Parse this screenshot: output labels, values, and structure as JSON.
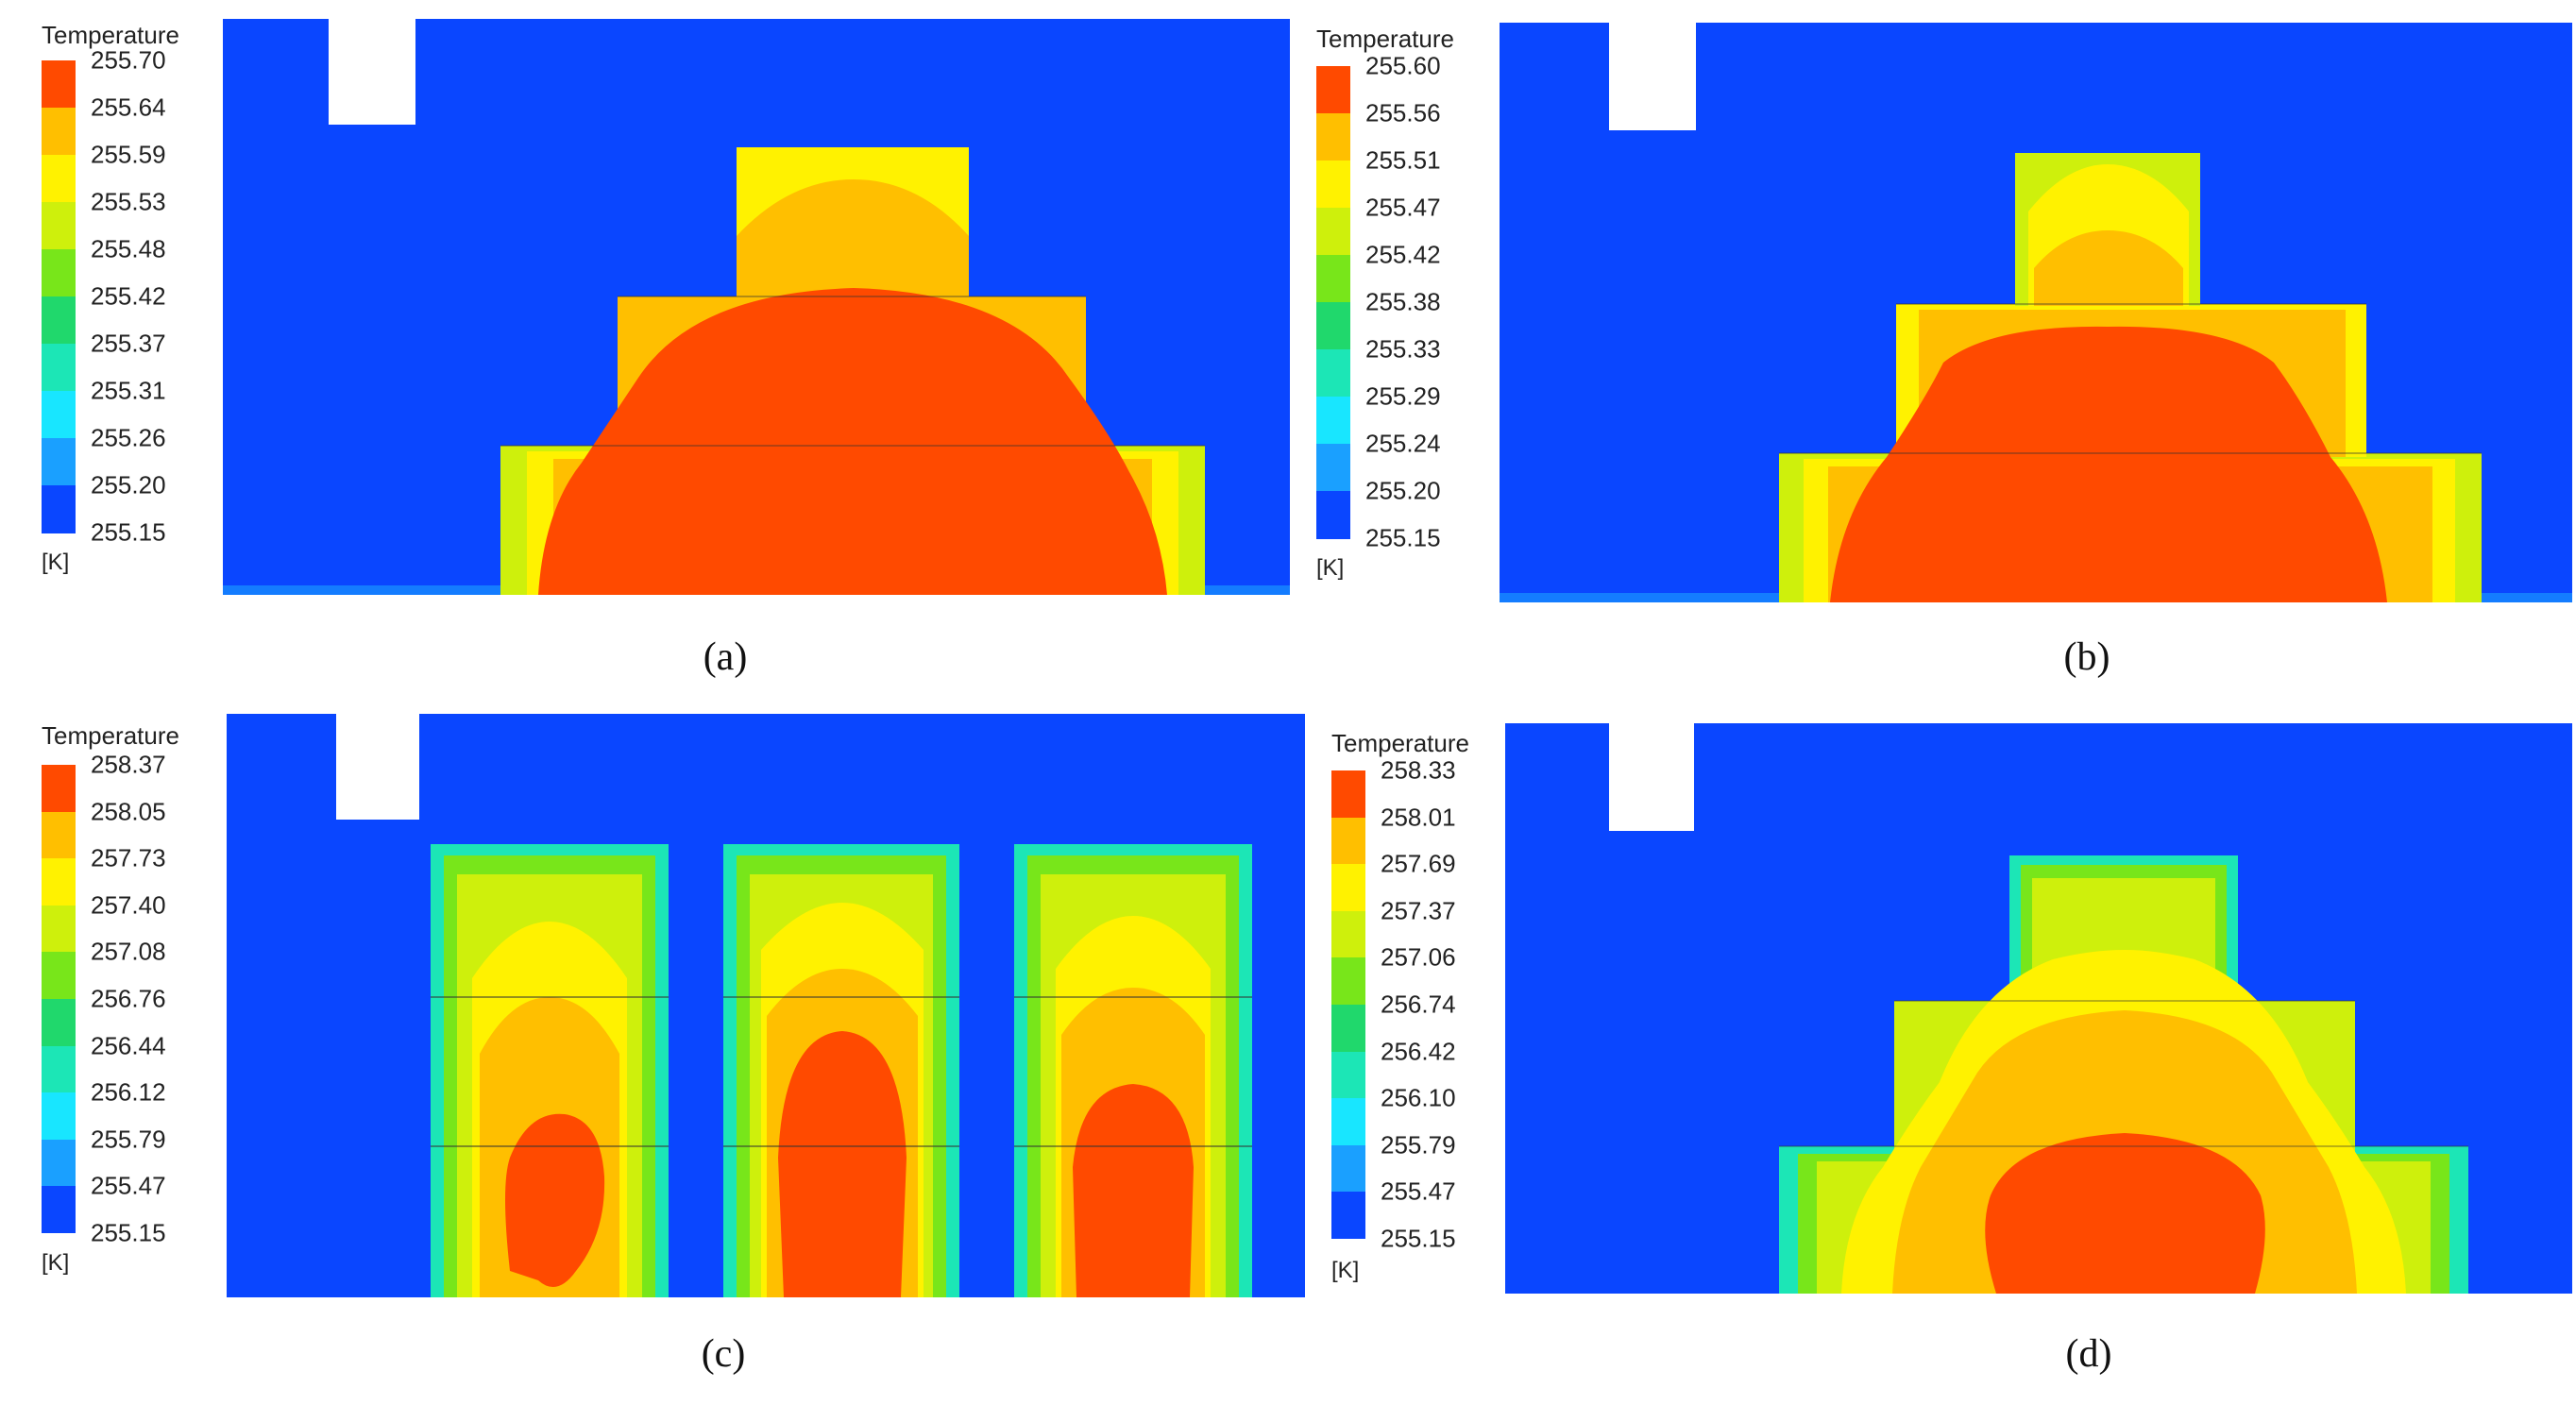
{
  "colors": {
    "background_field": "#0a46ff",
    "scale": [
      "#0a46ff",
      "#1aa0ff",
      "#18e6ff",
      "#1ce6b6",
      "#20d86c",
      "#78e61a",
      "#cef00c",
      "#fff200",
      "#ffbf00",
      "#ff4a00"
    ]
  },
  "panels": [
    {
      "id": "a",
      "caption": "(a)",
      "legend": {
        "title": "Temperature",
        "unit": "[K]",
        "ticks": [
          "255.70",
          "255.64",
          "255.59",
          "255.53",
          "255.48",
          "255.42",
          "255.37",
          "255.31",
          "255.26",
          "255.20",
          "255.15"
        ]
      }
    },
    {
      "id": "b",
      "caption": "(b)",
      "legend": {
        "title": "Temperature",
        "unit": "[K]",
        "ticks": [
          "255.60",
          "255.56",
          "255.51",
          "255.47",
          "255.42",
          "255.38",
          "255.33",
          "255.29",
          "255.24",
          "255.20",
          "255.15"
        ]
      }
    },
    {
      "id": "c",
      "caption": "(c)",
      "legend": {
        "title": "Temperature",
        "unit": "[K]",
        "ticks": [
          "258.37",
          "258.05",
          "257.73",
          "257.40",
          "257.08",
          "256.76",
          "256.44",
          "256.12",
          "255.79",
          "255.47",
          "255.15"
        ]
      }
    },
    {
      "id": "d",
      "caption": "(d)",
      "legend": {
        "title": "Temperature",
        "unit": "[K]",
        "ticks": [
          "258.33",
          "258.01",
          "257.69",
          "257.37",
          "257.06",
          "256.74",
          "256.42",
          "256.10",
          "255.79",
          "255.47",
          "255.15"
        ]
      }
    }
  ]
}
